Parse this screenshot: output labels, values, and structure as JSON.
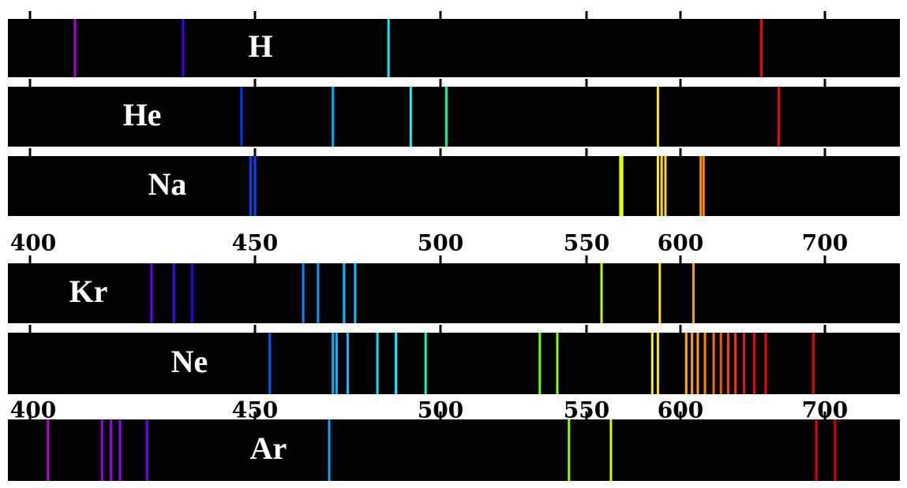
{
  "chart_data": {
    "type": "spectrum",
    "xticks": [
      400,
      450,
      500,
      550,
      600,
      700
    ],
    "series": [
      {
        "name": "H",
        "values": [
          410,
          434,
          486,
          656
        ]
      },
      {
        "name": "He",
        "values": [
          447,
          471,
          492,
          502,
          588,
          668
        ]
      },
      {
        "name": "Na",
        "values": [
          449,
          450,
          568,
          569,
          588,
          590,
          592,
          614,
          616
        ]
      },
      {
        "name": "Kr",
        "values": [
          427,
          432,
          436,
          463,
          467,
          474,
          477,
          558,
          589,
          609
        ]
      },
      {
        "name": "Ne",
        "values": [
          454,
          471,
          472,
          475,
          483,
          488,
          496,
          534,
          540,
          585,
          588,
          604,
          608,
          612,
          617,
          623,
          628,
          633,
          638,
          644,
          651,
          659,
          692
        ]
      },
      {
        "name": "Ar",
        "values": [
          404,
          416,
          418,
          420,
          426,
          470,
          544,
          563,
          694,
          707
        ]
      }
    ]
  }
}
